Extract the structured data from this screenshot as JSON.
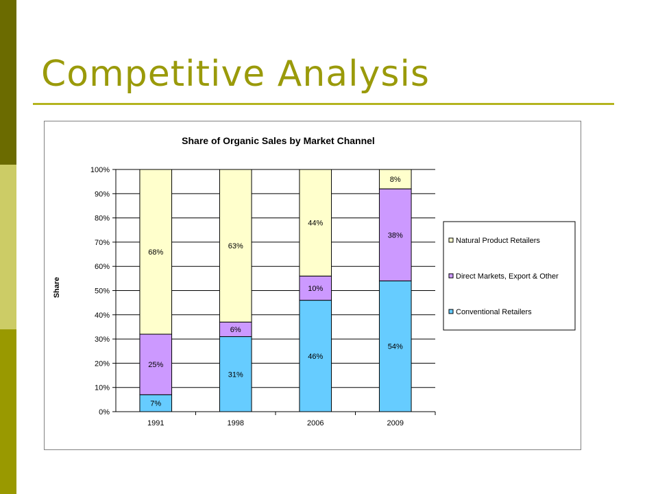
{
  "slide": {
    "title": "Competitive Analysis",
    "colors": {
      "title": "#9a9a0a",
      "rule": "#b4b41e",
      "sidebar": [
        "#6b6b00",
        "#cccc66",
        "#999900"
      ]
    }
  },
  "chart_data": {
    "type": "bar",
    "stacked": true,
    "title": "Share of Organic Sales by Market Channel",
    "xlabel": "",
    "ylabel": "Share",
    "ylim": [
      0,
      100
    ],
    "yticks": [
      "0%",
      "10%",
      "20%",
      "30%",
      "40%",
      "50%",
      "60%",
      "70%",
      "80%",
      "90%",
      "100%"
    ],
    "categories": [
      "1991",
      "1998",
      "2006",
      "2009"
    ],
    "grid": true,
    "legend_position": "right",
    "series": [
      {
        "name": "Conventional Retailers",
        "values": [
          7,
          31,
          46,
          54
        ],
        "labels": [
          "7%",
          "31%",
          "46%",
          "54%"
        ],
        "color": "#66ccff"
      },
      {
        "name": "Direct Markets, Export & Other",
        "values": [
          25,
          6,
          10,
          38
        ],
        "labels": [
          "25%",
          "6%",
          "10%",
          "38%"
        ],
        "color": "#cc99ff"
      },
      {
        "name": "Natural Product Retailers",
        "values": [
          68,
          63,
          44,
          8
        ],
        "labels": [
          "68%",
          "63%",
          "44%",
          "8%"
        ],
        "color": "#ffffcc"
      }
    ],
    "legend_order": [
      "Natural Product Retailers",
      "Direct Markets, Export & Other",
      "Conventional Retailers"
    ]
  }
}
